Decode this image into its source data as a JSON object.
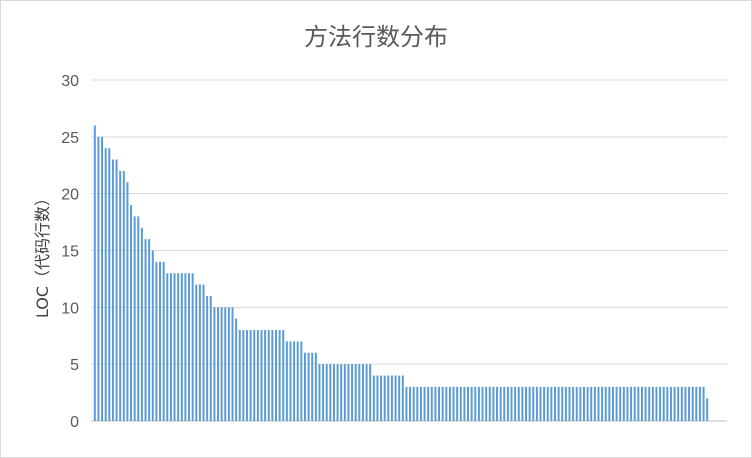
{
  "chart_data": {
    "type": "bar",
    "title": "方法行数分布",
    "xlabel": "",
    "ylabel": "LOC（代码行数）",
    "ylim": [
      0,
      30
    ],
    "yticks": [
      0,
      5,
      10,
      15,
      20,
      25,
      30
    ],
    "grid": true,
    "legend": "none",
    "bar_color": "#5b9bd5",
    "values": [
      26,
      25,
      25,
      24,
      24,
      23,
      23,
      22,
      22,
      21,
      19,
      18,
      18,
      17,
      16,
      16,
      15,
      14,
      14,
      14,
      13,
      13,
      13,
      13,
      13,
      13,
      13,
      13,
      12,
      12,
      12,
      11,
      11,
      10,
      10,
      10,
      10,
      10,
      10,
      9,
      8,
      8,
      8,
      8,
      8,
      8,
      8,
      8,
      8,
      8,
      8,
      8,
      8,
      7,
      7,
      7,
      7,
      7,
      6,
      6,
      6,
      6,
      5,
      5,
      5,
      5,
      5,
      5,
      5,
      5,
      5,
      5,
      5,
      5,
      5,
      5,
      5,
      4,
      4,
      4,
      4,
      4,
      4,
      4,
      4,
      4,
      3,
      3,
      3,
      3,
      3,
      3,
      3,
      3,
      3,
      3,
      3,
      3,
      3,
      3,
      3,
      3,
      3,
      3,
      3,
      3,
      3,
      3,
      3,
      3,
      3,
      3,
      3,
      3,
      3,
      3,
      3,
      3,
      3,
      3,
      3,
      3,
      3,
      3,
      3,
      3,
      3,
      3,
      3,
      3,
      3,
      3,
      3,
      3,
      3,
      3,
      3,
      3,
      3,
      3,
      3,
      3,
      3,
      3,
      3,
      3,
      3,
      3,
      3,
      3,
      3,
      3,
      3,
      3,
      3,
      3,
      3,
      3,
      3,
      3,
      3,
      3,
      3,
      3,
      3,
      3,
      3,
      3,
      3,
      2
    ]
  }
}
